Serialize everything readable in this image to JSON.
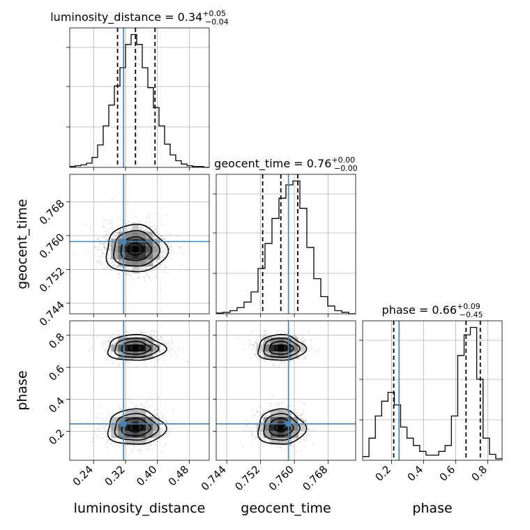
{
  "colors": {
    "truth": "#4682b4",
    "line": "#000000",
    "grid": "#b0b0b0",
    "scatter": "#888888"
  },
  "chart_data": {
    "type": "corner",
    "parameters": [
      "luminosity_distance",
      "geocent_time",
      "phase"
    ],
    "titles": [
      {
        "parameter": "luminosity_distance",
        "text": "luminosity_distance = 0.34",
        "plus": "+0.05",
        "minus": "−0.04"
      },
      {
        "parameter": "geocent_time",
        "text": "geocent_time = 0.76",
        "plus": "+0.00",
        "minus": "−0.00"
      },
      {
        "parameter": "phase",
        "text": "phase = 0.66",
        "plus": "+0.09",
        "minus": "−0.45"
      }
    ],
    "axis_labels": {
      "x": [
        "luminosity_distance",
        "geocent_time",
        "phase"
      ],
      "y": [
        "geocent_time",
        "phase"
      ]
    },
    "axes": {
      "luminosity_distance": {
        "range": [
          0.18,
          0.53
        ],
        "ticks": [
          0.24,
          0.32,
          0.4,
          0.48
        ],
        "tick_labels": [
          "0.24",
          "0.32",
          "0.40",
          "0.48"
        ]
      },
      "geocent_time": {
        "range": [
          0.7415,
          0.7745
        ],
        "ticks": [
          0.744,
          0.752,
          0.76,
          0.768
        ],
        "tick_labels": [
          "0.744",
          "0.752",
          "0.760",
          "0.768"
        ]
      },
      "phase": {
        "range": [
          0.02,
          0.89
        ],
        "ticks": [
          0.2,
          0.4,
          0.6,
          0.8
        ],
        "tick_labels": [
          "0.2",
          "0.4",
          "0.6",
          "0.8"
        ]
      }
    },
    "truths": {
      "luminosity_distance": 0.315,
      "geocent_time": 0.7586,
      "phase": 0.247
    },
    "quantiles": {
      "luminosity_distance": [
        0.3,
        0.345,
        0.394
      ],
      "geocent_time": [
        0.7525,
        0.7568,
        0.7608
      ],
      "phase": [
        0.214,
        0.665,
        0.754
      ]
    },
    "histograms": {
      "luminosity_distance": {
        "edges": [
          0.18,
          0.53
        ],
        "counts": [
          1,
          2,
          3,
          5,
          12,
          27,
          50,
          75,
          98,
          120,
          148,
          160,
          148,
          120,
          96,
          72,
          50,
          28,
          15,
          8,
          4,
          2,
          1,
          1,
          0
        ]
      },
      "geocent_time": {
        "edges": [
          0.7415,
          0.7745
        ],
        "counts": [
          1,
          2,
          4,
          8,
          15,
          28,
          58,
          90,
          122,
          148,
          165,
          170,
          135,
          85,
          45,
          22,
          10,
          4,
          2,
          0
        ]
      },
      "phase": {
        "edges": [
          0.02,
          0.89
        ],
        "counts": [
          5,
          30,
          60,
          80,
          92,
          75,
          45,
          30,
          20,
          12,
          7,
          7,
          12,
          20,
          60,
          142,
          170,
          180,
          110,
          30,
          8,
          2
        ]
      }
    },
    "contours_2d": {
      "geocent_time_vs_luminosity_distance": {
        "center": [
          0.345,
          0.7568
        ],
        "sigma": [
          0.038,
          0.0028
        ]
      },
      "phase_vs_luminosity_distance": {
        "modes": [
          {
            "center": [
              0.345,
              0.72
            ],
            "sigma": [
              0.036,
              0.04
            ]
          },
          {
            "center": [
              0.345,
              0.225
            ],
            "sigma": [
              0.036,
              0.055
            ]
          }
        ]
      },
      "phase_vs_geocent_time": {
        "modes": [
          {
            "center": [
              0.7568,
              0.72
            ],
            "sigma": [
              0.0028,
              0.04
            ]
          },
          {
            "center": [
              0.7568,
              0.225
            ],
            "sigma": [
              0.0028,
              0.055
            ]
          }
        ]
      }
    },
    "grid": true
  }
}
